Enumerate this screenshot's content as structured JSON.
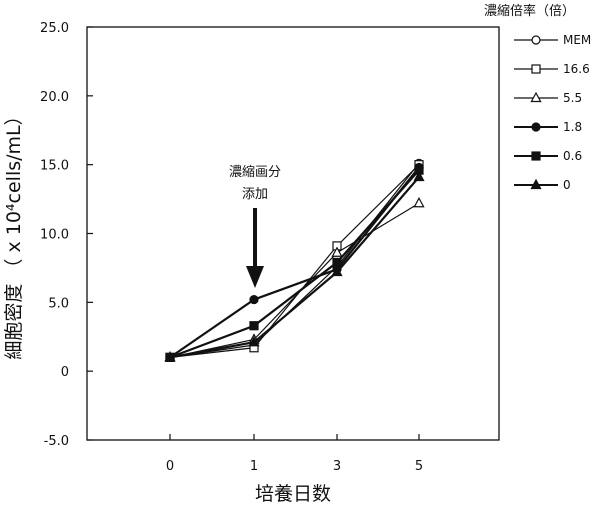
{
  "chart_data": {
    "type": "line",
    "xlabel": "培養日数",
    "ylabel": "細胞密度 （ x 10⁴cells/mL）",
    "categories": [
      "0",
      "1",
      "3",
      "5"
    ],
    "ylim": [
      -5.0,
      25.0
    ],
    "yticks": [
      "-5.0",
      "0",
      "5.0",
      "10.0",
      "15.0",
      "20.0",
      "25.0"
    ],
    "ytick_values": [
      -5,
      0,
      5,
      10,
      15,
      20,
      25
    ],
    "grid": false,
    "legend": {
      "title": "濃縮倍率（倍）",
      "placement": "right"
    },
    "annotation": {
      "lines": [
        "濃縮画分",
        "添加"
      ],
      "category": "1"
    },
    "series": [
      {
        "name": "MEM",
        "marker": "circle-open",
        "values": [
          1.0,
          1.9,
          7.6,
          15.1
        ]
      },
      {
        "name": "16.6",
        "marker": "square-open",
        "values": [
          1.0,
          1.7,
          9.1,
          15.0
        ]
      },
      {
        "name": "5.5",
        "marker": "triangle-open",
        "values": [
          1.0,
          2.3,
          8.6,
          12.2
        ]
      },
      {
        "name": "1.8",
        "marker": "circle-filled",
        "values": [
          1.0,
          5.2,
          7.4,
          14.8
        ]
      },
      {
        "name": "0.6",
        "marker": "square-filled",
        "values": [
          1.0,
          3.3,
          7.9,
          14.6
        ]
      },
      {
        "name": "0",
        "marker": "triangle-filled",
        "values": [
          1.0,
          2.1,
          7.2,
          14.1
        ]
      }
    ]
  }
}
